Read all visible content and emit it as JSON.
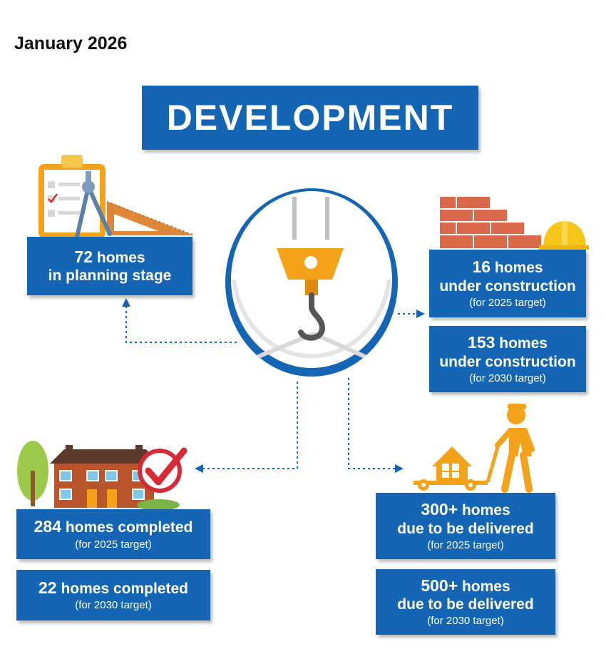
{
  "date": "January 2026",
  "title": "DEVELOPMENT",
  "planning": {
    "number": "72",
    "unit": "homes",
    "line2": "in planning stage"
  },
  "construction_2025": {
    "number": "16",
    "unit": "homes",
    "line2": "under construction",
    "note": "(for 2025 target)"
  },
  "construction_2030": {
    "number": "153",
    "unit": "homes",
    "line2": "under construction",
    "note": "(for 2030 target)"
  },
  "completed_2025": {
    "number": "284",
    "unit": "homes completed",
    "note": "(for 2025 target)"
  },
  "completed_2030": {
    "number": "22",
    "unit": "homes completed",
    "note": "(for 2030 target)"
  },
  "delivered_2025": {
    "number": "300+",
    "unit": "homes",
    "line2": "due to be delivered",
    "note": "(for 2025 target)"
  },
  "delivered_2030": {
    "number": "500+",
    "unit": "homes",
    "line2": "due to be delivered",
    "note": "(for 2030 target)"
  },
  "colors": {
    "primary_blue": "#1565b5",
    "orange": "#f5a21b",
    "brick": "#d9694a",
    "check_red": "#d62b35",
    "tree_green": "#9cc94a"
  },
  "icons": [
    "clipboard-icon",
    "compass-icon",
    "ruler-icon",
    "crane-hook-icon",
    "bricks-icon",
    "hard-hat-icon",
    "house-icon",
    "tree-icon",
    "checkmark-icon",
    "delivery-worker-icon"
  ]
}
